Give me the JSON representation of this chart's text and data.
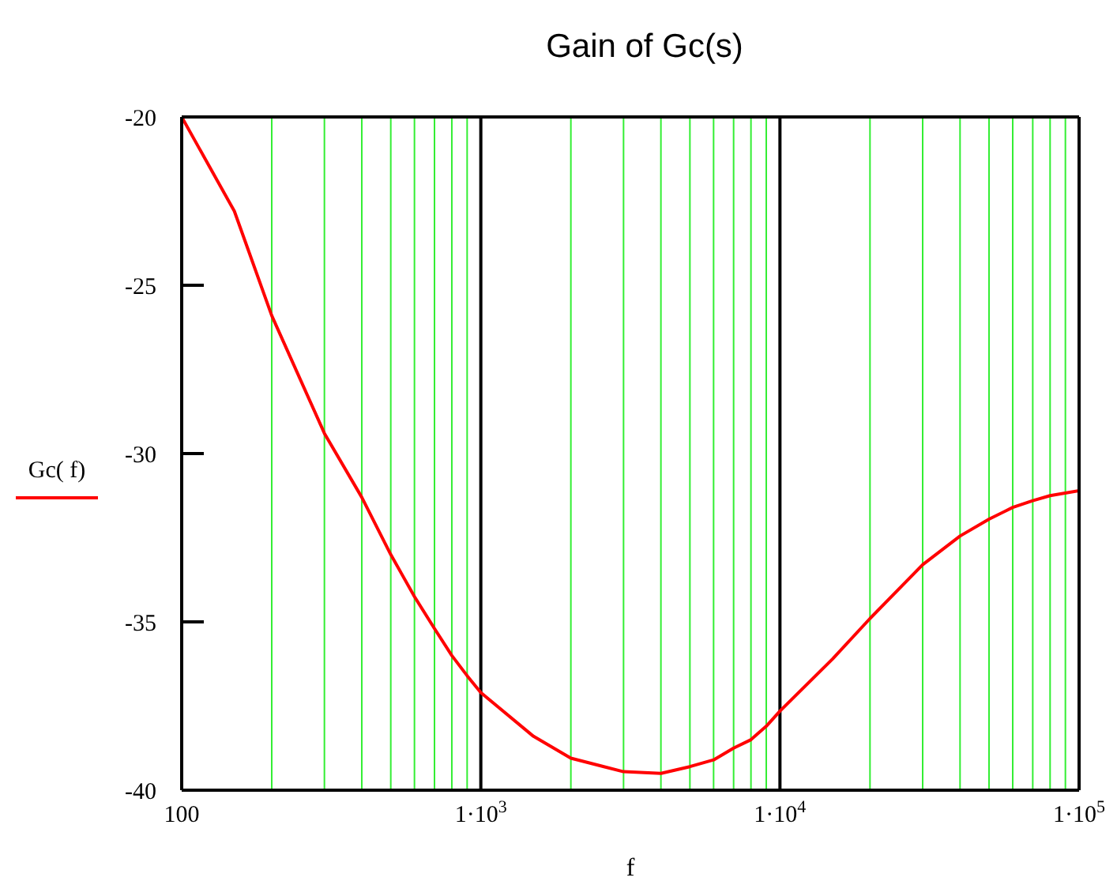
{
  "chart_data": {
    "type": "line",
    "title": "Gain of Gc(s)",
    "xlabel": "f",
    "log": "x",
    "grid": "x",
    "legend": "left",
    "line_style": "solid",
    "marker": "none",
    "x": [
      100,
      150,
      200,
      300,
      400,
      500,
      600,
      700,
      800,
      900,
      1000,
      1500,
      2000,
      3000,
      4000,
      5000,
      6000,
      7000,
      8000,
      9000,
      10000,
      15000,
      20000,
      30000,
      40000,
      50000,
      60000,
      70000,
      80000,
      100000
    ],
    "series": [
      {
        "name": "Gc( f)",
        "color": "#ff0000",
        "values": [
          -20,
          -22.8,
          -25.9,
          -29.4,
          -31.3,
          -33.0,
          -34.25,
          -35.2,
          -36.0,
          -36.6,
          -37.1,
          -38.4,
          -39.05,
          -39.45,
          -39.5,
          -39.3,
          -39.1,
          -38.75,
          -38.5,
          -38.1,
          -37.65,
          -36.1,
          -34.9,
          -33.3,
          -32.45,
          -31.95,
          -31.6,
          -31.4,
          -31.25,
          -31.1
        ]
      }
    ],
    "xlim": [
      100,
      100000
    ],
    "xticks": [
      {
        "value": 100,
        "label": "100"
      },
      {
        "value": 200,
        "label": null
      },
      {
        "value": 300,
        "label": null
      },
      {
        "value": 400,
        "label": null
      },
      {
        "value": 500,
        "label": null
      },
      {
        "value": 600,
        "label": null
      },
      {
        "value": 700,
        "label": null
      },
      {
        "value": 800,
        "label": null
      },
      {
        "value": 900,
        "label": null
      },
      {
        "value": 1000,
        "label": "1·10$^{3}$"
      },
      {
        "value": 2000,
        "label": null
      },
      {
        "value": 3000,
        "label": null
      },
      {
        "value": 4000,
        "label": null
      },
      {
        "value": 5000,
        "label": null
      },
      {
        "value": 6000,
        "label": null
      },
      {
        "value": 7000,
        "label": null
      },
      {
        "value": 8000,
        "label": null
      },
      {
        "value": 9000,
        "label": null
      },
      {
        "value": 10000,
        "label": "1·10$^{4}$"
      },
      {
        "value": 20000,
        "label": null
      },
      {
        "value": 30000,
        "label": null
      },
      {
        "value": 40000,
        "label": null
      },
      {
        "value": 50000,
        "label": null
      },
      {
        "value": 60000,
        "label": null
      },
      {
        "value": 70000,
        "label": null
      },
      {
        "value": 80000,
        "label": null
      },
      {
        "value": 90000,
        "label": null
      },
      {
        "value": 100000,
        "label": "1·10$^{5}$"
      }
    ],
    "ylim": [
      -40,
      -20
    ],
    "yticks": [
      -40,
      -35,
      -30,
      -25,
      -20
    ]
  }
}
